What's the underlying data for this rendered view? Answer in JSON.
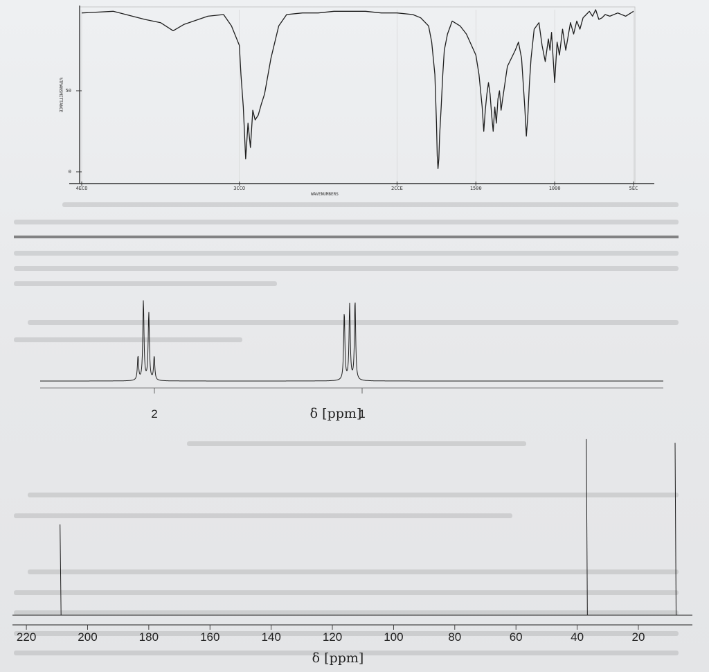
{
  "chart_data": [
    {
      "type": "line",
      "name": "ir",
      "xlabel": "WAVENUMBERS",
      "ylabel": "%TRANSMITTANCE",
      "x_ticks": [
        {
          "value": 4000,
          "label": "4ECO"
        },
        {
          "value": 3000,
          "label": "3CCO"
        },
        {
          "value": 2000,
          "label": "2CCE"
        },
        {
          "value": 1500,
          "label": "1500"
        },
        {
          "value": 1000,
          "label": "1000"
        },
        {
          "value": 500,
          "label": "5EC"
        }
      ],
      "y_ticks": [
        {
          "value": 0,
          "label": "0"
        },
        {
          "value": 50,
          "label": "50"
        }
      ],
      "xlim": [
        4000,
        500
      ],
      "ylim": [
        0,
        100
      ],
      "x": [
        4000,
        3800,
        3600,
        3500,
        3420,
        3350,
        3200,
        3100,
        3050,
        3000,
        2990,
        2975,
        2960,
        2945,
        2930,
        2915,
        2900,
        2880,
        2860,
        2840,
        2800,
        2750,
        2700,
        2600,
        2500,
        2400,
        2300,
        2200,
        2100,
        2000,
        1900,
        1850,
        1800,
        1780,
        1760,
        1750,
        1745,
        1740,
        1735,
        1730,
        1720,
        1710,
        1700,
        1680,
        1650,
        1600,
        1560,
        1500,
        1480,
        1460,
        1450,
        1440,
        1430,
        1420,
        1410,
        1400,
        1390,
        1380,
        1370,
        1360,
        1350,
        1340,
        1330,
        1300,
        1250,
        1230,
        1210,
        1200,
        1190,
        1180,
        1170,
        1160,
        1150,
        1130,
        1100,
        1080,
        1060,
        1040,
        1030,
        1020,
        1010,
        1000,
        985,
        970,
        950,
        930,
        900,
        880,
        860,
        840,
        820,
        800,
        780,
        760,
        740,
        720,
        700,
        680,
        650,
        600,
        550,
        500
      ],
      "y": [
        98,
        99,
        94,
        92,
        87,
        91,
        96,
        97,
        90,
        78,
        60,
        40,
        8,
        30,
        15,
        38,
        32,
        35,
        42,
        48,
        70,
        90,
        97,
        98,
        98,
        99,
        99,
        99,
        98,
        98,
        97,
        95,
        90,
        80,
        60,
        30,
        10,
        2,
        8,
        22,
        40,
        60,
        75,
        85,
        93,
        90,
        85,
        72,
        60,
        40,
        25,
        38,
        48,
        55,
        48,
        35,
        25,
        40,
        30,
        45,
        50,
        38,
        45,
        65,
        75,
        80,
        70,
        55,
        40,
        22,
        35,
        55,
        70,
        88,
        92,
        78,
        68,
        82,
        75,
        86,
        70,
        55,
        80,
        72,
        88,
        75,
        92,
        85,
        93,
        88,
        95,
        97,
        99,
        96,
        100,
        94,
        95,
        97,
        96,
        98,
        96,
        99
      ]
    },
    {
      "type": "line",
      "name": "h-nmr",
      "xlabel": "δ [ppm]",
      "x_ticks": [
        {
          "value": 2,
          "label": "2"
        },
        {
          "value": 1,
          "label": "1"
        }
      ],
      "xlim": [
        2.55,
        -0.45
      ],
      "peaks": [
        {
          "center": 2.04,
          "spacing": 0.026,
          "heights": [
            0.3,
            0.85,
            1.0,
            0.3
          ]
        },
        {
          "center": 1.06,
          "spacing": 0.026,
          "heights": [
            1.0,
            0.95,
            0.85
          ]
        }
      ]
    },
    {
      "type": "bar",
      "name": "c-nmr",
      "xlabel": "δ [ppm]",
      "x_ticks": [
        {
          "value": 220,
          "label": "220"
        },
        {
          "value": 200,
          "label": "200"
        },
        {
          "value": 180,
          "label": "180"
        },
        {
          "value": 160,
          "label": "160"
        },
        {
          "value": 140,
          "label": "140"
        },
        {
          "value": 120,
          "label": "120"
        },
        {
          "value": 100,
          "label": "100"
        },
        {
          "value": 80,
          "label": "80"
        },
        {
          "value": 60,
          "label": "60"
        },
        {
          "value": 40,
          "label": "40"
        },
        {
          "value": 20,
          "label": "20"
        }
      ],
      "xlim": [
        225,
        8
      ],
      "peaks": [
        {
          "shift": 209,
          "height": 0.5
        },
        {
          "shift": 37,
          "height": 0.97
        },
        {
          "shift": 8,
          "height": 0.95
        }
      ]
    }
  ]
}
